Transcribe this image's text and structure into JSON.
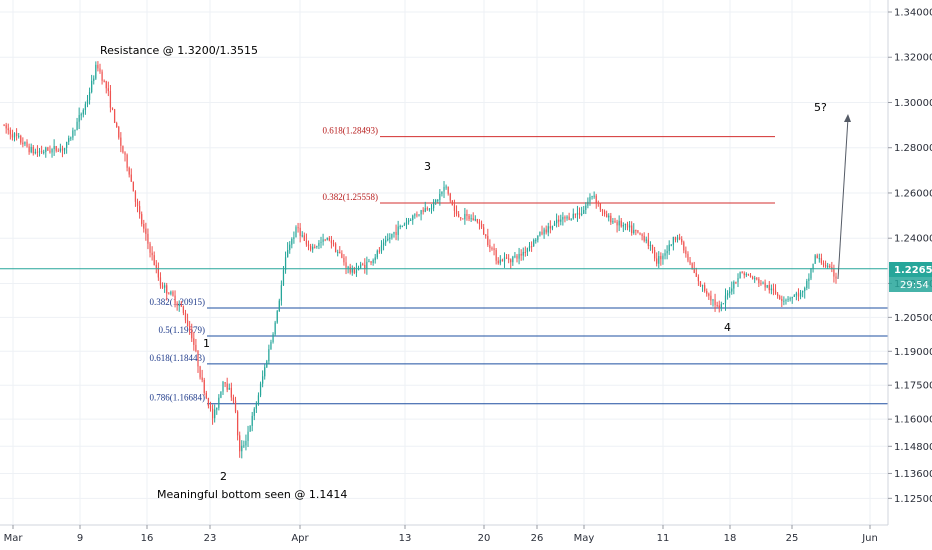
{
  "chart_data": {
    "type": "candlestick",
    "ylim": [
      1.13,
      1.345
    ],
    "y_ticks": [
      "1.34000",
      "1.32000",
      "1.30000",
      "1.28000",
      "1.26000",
      "1.24000",
      "1.22000",
      "1.20500",
      "1.19000",
      "1.17500",
      "1.16000",
      "1.14800",
      "1.13600",
      "1.12500"
    ],
    "x_ticks": [
      "Mar",
      "9",
      "16",
      "23",
      "Apr",
      "13",
      "20",
      "26",
      "May",
      "11",
      "18",
      "25",
      "Jun"
    ],
    "price_path": [
      [
        0,
        1.29
      ],
      [
        3,
        1.278
      ],
      [
        6,
        1.28
      ],
      [
        8,
        1.3
      ],
      [
        9,
        1.317
      ],
      [
        10,
        1.305
      ],
      [
        11,
        1.285
      ],
      [
        12,
        1.27
      ],
      [
        13,
        1.25
      ],
      [
        14,
        1.235
      ],
      [
        15,
        1.22
      ],
      [
        16,
        1.215
      ],
      [
        17,
        1.209
      ],
      [
        18,
        1.1968
      ],
      [
        19,
        1.175
      ],
      [
        20,
        1.16
      ],
      [
        21,
        1.178
      ],
      [
        22,
        1.168
      ],
      [
        22.5,
        1.145
      ],
      [
        23,
        1.15
      ],
      [
        24,
        1.165
      ],
      [
        25,
        1.185
      ],
      [
        26,
        1.205
      ],
      [
        27,
        1.235
      ],
      [
        28,
        1.245
      ],
      [
        29,
        1.235
      ],
      [
        31,
        1.24
      ],
      [
        33,
        1.225
      ],
      [
        35,
        1.23
      ],
      [
        37,
        1.242
      ],
      [
        39,
        1.25
      ],
      [
        41,
        1.2555
      ],
      [
        42,
        1.263
      ],
      [
        43,
        1.25
      ],
      [
        45,
        1.248
      ],
      [
        47,
        1.23
      ],
      [
        49,
        1.232
      ],
      [
        51,
        1.242
      ],
      [
        53,
        1.248
      ],
      [
        55,
        1.252
      ],
      [
        56,
        1.26
      ],
      [
        57,
        1.25
      ],
      [
        59,
        1.245
      ],
      [
        61,
        1.24
      ],
      [
        62,
        1.23
      ],
      [
        63,
        1.235
      ],
      [
        64,
        1.242
      ],
      [
        65,
        1.23
      ],
      [
        66,
        1.22
      ],
      [
        67,
        1.215
      ],
      [
        68,
        1.208
      ],
      [
        69,
        1.218
      ],
      [
        70,
        1.225
      ],
      [
        72,
        1.22
      ],
      [
        74,
        1.213
      ],
      [
        76,
        1.216
      ],
      [
        77,
        1.232
      ],
      [
        78,
        1.228
      ],
      [
        79,
        1.223
      ]
    ],
    "current_price_label": "1.22650",
    "countdown_label": "29:54",
    "fib_red": [
      {
        "label": "0.618(1.28493)",
        "value": 1.28493
      },
      {
        "label": "0.382(1.25558)",
        "value": 1.25558
      }
    ],
    "fib_blue": [
      {
        "label": "0.382(1.20915)",
        "value": 1.20915
      },
      {
        "label": "0.5(1.19679)",
        "value": 1.19679
      },
      {
        "label": "0.618(1.18443)",
        "value": 1.18443
      },
      {
        "label": "0.786(1.16684)",
        "value": 1.16684
      }
    ],
    "annotations": {
      "resistance": "Resistance @ 1.3200/1.3515",
      "bottom": "Meaningful bottom seen @ 1.1414"
    },
    "wave_labels": [
      "1",
      "2",
      "3",
      "4",
      "5?"
    ],
    "colors": {
      "up": "#26a69a",
      "down": "#ef5350",
      "current_line": "#26a69a",
      "fib_red": "#d32f2f",
      "fib_blue": "#1e4fa0"
    }
  }
}
